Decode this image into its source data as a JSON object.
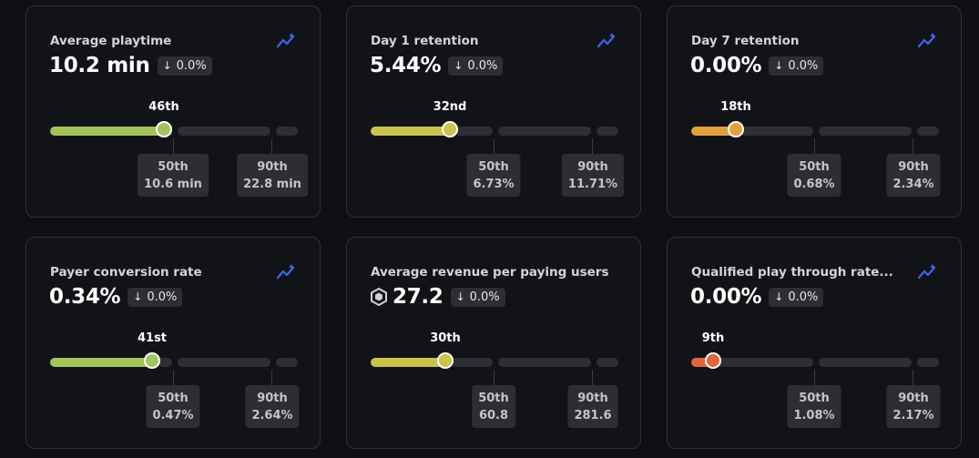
{
  "cards": [
    {
      "title": "Average playtime",
      "value": "10.2 min",
      "change": "0.0%",
      "percentile": "46th",
      "color": "#a3c45a",
      "benchmarks": [
        {
          "label": "50th",
          "value": "10.6 min"
        },
        {
          "label": "90th",
          "value": "22.8 min"
        }
      ]
    },
    {
      "title": "Day 1 retention",
      "value": "5.44%",
      "change": "0.0%",
      "percentile": "32nd",
      "color": "#c9c44a",
      "benchmarks": [
        {
          "label": "50th",
          "value": "6.73%"
        },
        {
          "label": "90th",
          "value": "11.71%"
        }
      ]
    },
    {
      "title": "Day 7 retention",
      "value": "0.00%",
      "change": "0.0%",
      "percentile": "18th",
      "color": "#e0a03c",
      "benchmarks": [
        {
          "label": "50th",
          "value": "0.68%"
        },
        {
          "label": "90th",
          "value": "2.34%"
        }
      ]
    },
    {
      "title": "Payer conversion rate",
      "value": "0.34%",
      "change": "0.0%",
      "percentile": "41st",
      "color": "#a3c45a",
      "benchmarks": [
        {
          "label": "50th",
          "value": "0.47%"
        },
        {
          "label": "90th",
          "value": "2.64%"
        }
      ]
    },
    {
      "title": "Average revenue per paying users",
      "value": "27.2",
      "value_icon": "robux-icon",
      "change": "0.0%",
      "percentile": "30th",
      "color": "#c9c44a",
      "benchmarks": [
        {
          "label": "50th",
          "value": "60.8"
        },
        {
          "label": "90th",
          "value": "281.6"
        }
      ]
    },
    {
      "title": "Qualified play through rate...",
      "value": "0.00%",
      "change": "0.0%",
      "percentile": "9th",
      "color": "#e0673a",
      "benchmarks": [
        {
          "label": "50th",
          "value": "1.08%"
        },
        {
          "label": "90th",
          "value": "2.17%"
        }
      ]
    }
  ],
  "icons": {
    "trend": "trend-chart-icon",
    "change_arrow": "arrow-down-icon"
  },
  "colors": {
    "trend_icon": "#3f64f0",
    "track": "#2e2f34"
  }
}
